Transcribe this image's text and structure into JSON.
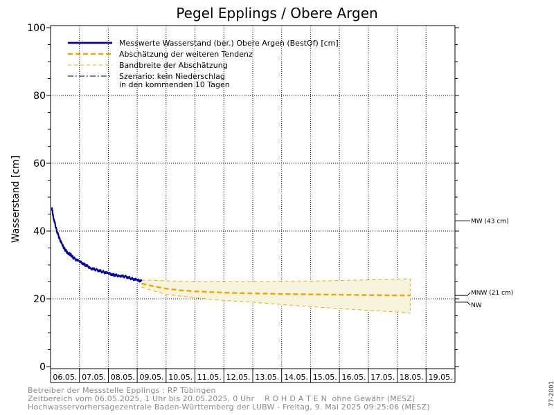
{
  "chart_data": {
    "type": "line",
    "title": "Pegel Epplings / Obere Argen",
    "ylabel": "Wasserstand [cm]",
    "xlabel": "",
    "ylim": [
      0,
      100
    ],
    "y_ticks": [
      0,
      20,
      40,
      60,
      80,
      100
    ],
    "x_tick_labels": [
      "06.05.",
      "07.05.",
      "08.05.",
      "09.05.",
      "10.05.",
      "11.05.",
      "12.05.",
      "13.05.",
      "14.05.",
      "15.05.",
      "16.05.",
      "17.05.",
      "18.05.",
      "19.05."
    ],
    "x_range_days": [
      6,
      20
    ],
    "grid": true,
    "legend_position": "top-left",
    "legend": [
      {
        "label": "Messwerte Wasserstand (ber.) Obere Argen  (BestOf)  [cm]",
        "style": "solid",
        "color": "#0000aa"
      },
      {
        "label": "Abschätzung der weiteren Tendenz",
        "style": "dashed",
        "color": "#f0a800"
      },
      {
        "label": "Bandbreite der Abschätzung",
        "style": "thin-dashed",
        "color": "#f0a800"
      },
      {
        "label": "Szenario: kein Niederschlag",
        "label2": "in den kommenden 10 Tagen",
        "style": "dashdot",
        "color": "#000000"
      }
    ],
    "series": [
      {
        "name": "Messwerte Wasserstand (ber.) Obere Argen  (BestOf)  [cm]",
        "color": "#0000aa",
        "x_day": [
          6.04,
          6.1,
          6.2,
          6.3,
          6.4,
          6.5,
          6.6,
          6.7,
          6.8,
          7.0,
          7.2,
          7.4,
          7.6,
          7.8,
          8.0,
          8.2,
          8.4,
          8.6,
          8.8,
          9.0,
          9.15
        ],
        "y": [
          47,
          44,
          40.5,
          38,
          36,
          34.5,
          33.5,
          33,
          32,
          31,
          30,
          29,
          28.5,
          28,
          27.5,
          27,
          26.8,
          26.5,
          26,
          25.5,
          25.2
        ]
      },
      {
        "name": "Abschätzung der weiteren Tendenz",
        "color": "#f0a800",
        "x_day": [
          9.15,
          9.5,
          10.0,
          10.5,
          11.0,
          11.5,
          12.0,
          13.0,
          14.0,
          15.0,
          16.0,
          17.0,
          18.0,
          18.45
        ],
        "y": [
          24.5,
          23.8,
          23.0,
          22.5,
          22.2,
          22.0,
          21.8,
          21.6,
          21.4,
          21.3,
          21.2,
          21.1,
          21.0,
          21.0
        ]
      },
      {
        "name": "Bandbreite (obere Grenze)",
        "color": "#f0a800",
        "x_day": [
          9.15,
          9.5,
          10.0,
          11.0,
          12.0,
          13.0,
          14.0,
          15.0,
          16.0,
          17.0,
          18.0,
          18.45
        ],
        "y": [
          25.5,
          25.5,
          25.3,
          25.0,
          25.0,
          25.0,
          25.1,
          25.2,
          25.4,
          25.6,
          25.8,
          25.9
        ]
      },
      {
        "name": "Bandbreite (untere Grenze)",
        "color": "#f0a800",
        "x_day": [
          9.15,
          9.5,
          10.0,
          11.0,
          12.0,
          13.0,
          14.0,
          15.0,
          16.0,
          17.0,
          18.0,
          18.45
        ],
        "y": [
          23.5,
          22.5,
          21.3,
          20.3,
          19.5,
          19.0,
          18.3,
          17.7,
          17.1,
          16.6,
          16.1,
          15.8
        ]
      }
    ],
    "reference_levels": [
      {
        "label": "MW (43 cm)",
        "value": 43
      },
      {
        "label": "MNW (21 cm)",
        "value": 21
      },
      {
        "label": "NW",
        "value": 19
      }
    ]
  },
  "footer": {
    "line1": "Betreiber der Messstelle Epplings : RP Tübingen",
    "line2": "Zeitbereich vom 06.05.2025, 1 Uhr bis 20.05.2025, 0 Uhr    R O H D A T E N  ohne Gewähr (MESZ)",
    "line3": "Hochwasservorhersagezentrale Baden-Württemberg der LUBW - Freitag, 9. Mai 2025 09:25:06 (MESZ)"
  },
  "side_code": "77-2001"
}
